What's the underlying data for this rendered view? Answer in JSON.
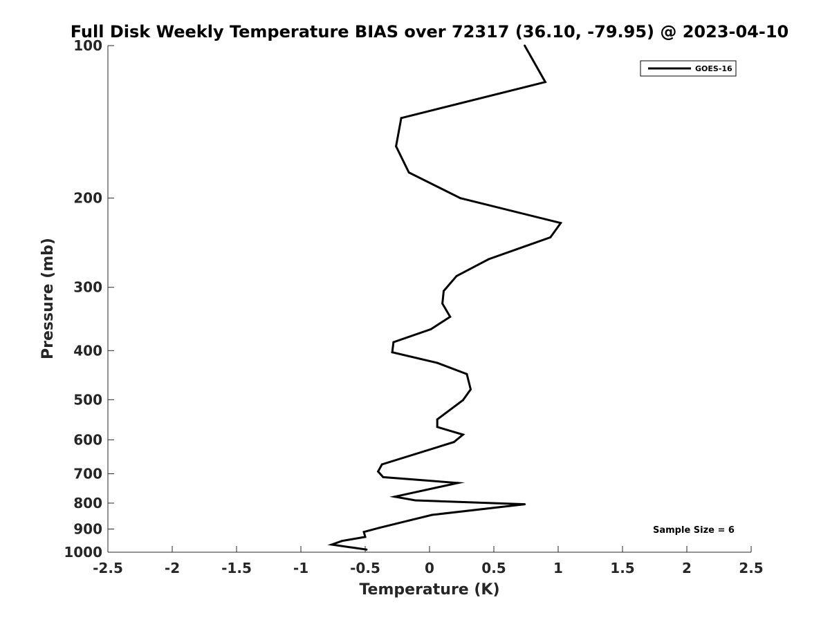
{
  "chart_data": {
    "type": "line",
    "title": "Full Disk Weekly Temperature BIAS over 72317 (36.10, -79.95) @ 2023-04-10",
    "xlabel": "Temperature (K)",
    "ylabel": "Pressure (mb)",
    "xlim": [
      -2.5,
      2.5
    ],
    "ylim": [
      100,
      1000
    ],
    "yscale": "log",
    "y_reversed": true,
    "grid": false,
    "legend_position": "top-right",
    "x_ticks": [
      -2.5,
      -2,
      -1.5,
      -1,
      -0.5,
      0,
      0.5,
      1,
      1.5,
      2,
      2.5
    ],
    "x_tick_labels": [
      "-2.5",
      "-2",
      "-1.5",
      "-1",
      "-0.5",
      "0",
      "0.5",
      "1",
      "1.5",
      "2",
      "2.5"
    ],
    "y_ticks": [
      100,
      200,
      300,
      400,
      500,
      600,
      700,
      800,
      900,
      1000
    ],
    "y_tick_labels": [
      "100",
      "200",
      "300",
      "400",
      "500",
      "600",
      "700",
      "800",
      "900",
      "1000"
    ],
    "series": [
      {
        "name": "GOES-16",
        "color": "#000000",
        "points": [
          {
            "x": 0.74,
            "p": 100
          },
          {
            "x": 0.9,
            "p": 118
          },
          {
            "x": -0.22,
            "p": 139
          },
          {
            "x": -0.26,
            "p": 158
          },
          {
            "x": -0.16,
            "p": 178
          },
          {
            "x": 0.24,
            "p": 200
          },
          {
            "x": 1.02,
            "p": 224
          },
          {
            "x": 0.94,
            "p": 239
          },
          {
            "x": 0.46,
            "p": 264
          },
          {
            "x": 0.21,
            "p": 285
          },
          {
            "x": 0.11,
            "p": 305
          },
          {
            "x": 0.1,
            "p": 323
          },
          {
            "x": 0.16,
            "p": 343
          },
          {
            "x": 0.01,
            "p": 363
          },
          {
            "x": -0.28,
            "p": 385
          },
          {
            "x": -0.29,
            "p": 403
          },
          {
            "x": 0.06,
            "p": 423
          },
          {
            "x": 0.29,
            "p": 445
          },
          {
            "x": 0.32,
            "p": 477
          },
          {
            "x": 0.26,
            "p": 501
          },
          {
            "x": 0.06,
            "p": 547
          },
          {
            "x": 0.06,
            "p": 566
          },
          {
            "x": 0.26,
            "p": 586
          },
          {
            "x": 0.19,
            "p": 606
          },
          {
            "x": -0.37,
            "p": 671
          },
          {
            "x": -0.4,
            "p": 693
          },
          {
            "x": -0.36,
            "p": 711
          },
          {
            "x": 0.22,
            "p": 730
          },
          {
            "x": -0.27,
            "p": 777
          },
          {
            "x": -0.11,
            "p": 790
          },
          {
            "x": 0.74,
            "p": 804
          },
          {
            "x": 0.02,
            "p": 844
          },
          {
            "x": -0.16,
            "p": 866
          },
          {
            "x": -0.39,
            "p": 895
          },
          {
            "x": -0.51,
            "p": 912
          },
          {
            "x": -0.5,
            "p": 933
          },
          {
            "x": -0.68,
            "p": 950
          },
          {
            "x": -0.76,
            "p": 966
          },
          {
            "x": -0.49,
            "p": 988
          }
        ]
      }
    ],
    "annotations": [
      {
        "text": "Sample Size = 6",
        "position": "bottom-right"
      }
    ]
  }
}
